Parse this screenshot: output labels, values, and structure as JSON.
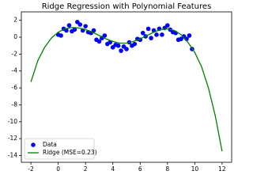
{
  "chart_data": {
    "type": "scatter",
    "title": "Ridge Regression with Polynomial Features",
    "xlim": [
      -2.7,
      12.7
    ],
    "ylim": [
      -14.8,
      3.0
    ],
    "xticks": [
      -2,
      0,
      2,
      4,
      6,
      8,
      10,
      12
    ],
    "yticks": [
      2,
      0,
      -2,
      -4,
      -6,
      -8,
      -10,
      -12,
      -14
    ],
    "grid": false,
    "legend": "lower left",
    "series": [
      {
        "name": "Data",
        "type": "scatter",
        "color": "#0000ff",
        "x": [
          0.0,
          0.2,
          0.4,
          0.6,
          0.8,
          1.0,
          1.2,
          1.4,
          1.6,
          1.8,
          2.0,
          2.2,
          2.4,
          2.6,
          2.8,
          3.0,
          3.2,
          3.4,
          3.6,
          3.8,
          4.0,
          4.2,
          4.4,
          4.6,
          4.8,
          5.0,
          5.2,
          5.4,
          5.6,
          5.8,
          6.0,
          6.2,
          6.4,
          6.6,
          6.8,
          7.0,
          7.2,
          7.4,
          7.6,
          7.8,
          8.0,
          8.2,
          8.4,
          8.6,
          8.8,
          9.0,
          9.2,
          9.4,
          9.6,
          9.8
        ],
        "values": [
          0.3,
          0.2,
          1.0,
          0.8,
          1.4,
          0.7,
          0.9,
          1.8,
          1.5,
          0.8,
          1.3,
          0.6,
          0.5,
          0.8,
          -0.3,
          -0.5,
          -0.1,
          0.2,
          -0.8,
          -0.6,
          -1.2,
          -0.9,
          -1.0,
          -1.6,
          -1.1,
          -1.4,
          -0.6,
          -1.0,
          -0.8,
          -0.2,
          -0.3,
          0.5,
          0.1,
          1.0,
          -0.1,
          0.8,
          0.3,
          1.0,
          0.3,
          1.1,
          1.4,
          0.9,
          0.6,
          0.5,
          -0.3,
          -0.2,
          0.1,
          -0.2,
          0.2,
          -1.4
        ]
      },
      {
        "name": "Ridge (MSE=0.23)",
        "type": "line",
        "color": "#008000",
        "x": [
          -2,
          -1.5,
          -1,
          -0.5,
          0,
          0.5,
          1,
          1.5,
          2,
          2.5,
          3,
          3.5,
          4,
          4.5,
          5,
          5.5,
          6,
          6.5,
          7,
          7.5,
          8,
          8.5,
          9,
          9.5,
          10,
          10.5,
          11,
          11.5,
          12
        ],
        "values": [
          -5.3,
          -2.8,
          -1.2,
          -0.1,
          0.6,
          1.0,
          1.15,
          1.1,
          0.9,
          0.6,
          0.2,
          -0.2,
          -0.5,
          -0.7,
          -0.7,
          -0.5,
          -0.2,
          0.2,
          0.6,
          0.9,
          1.0,
          0.8,
          0.3,
          -0.6,
          -1.8,
          -3.5,
          -6.0,
          -9.3,
          -13.5
        ]
      }
    ]
  }
}
